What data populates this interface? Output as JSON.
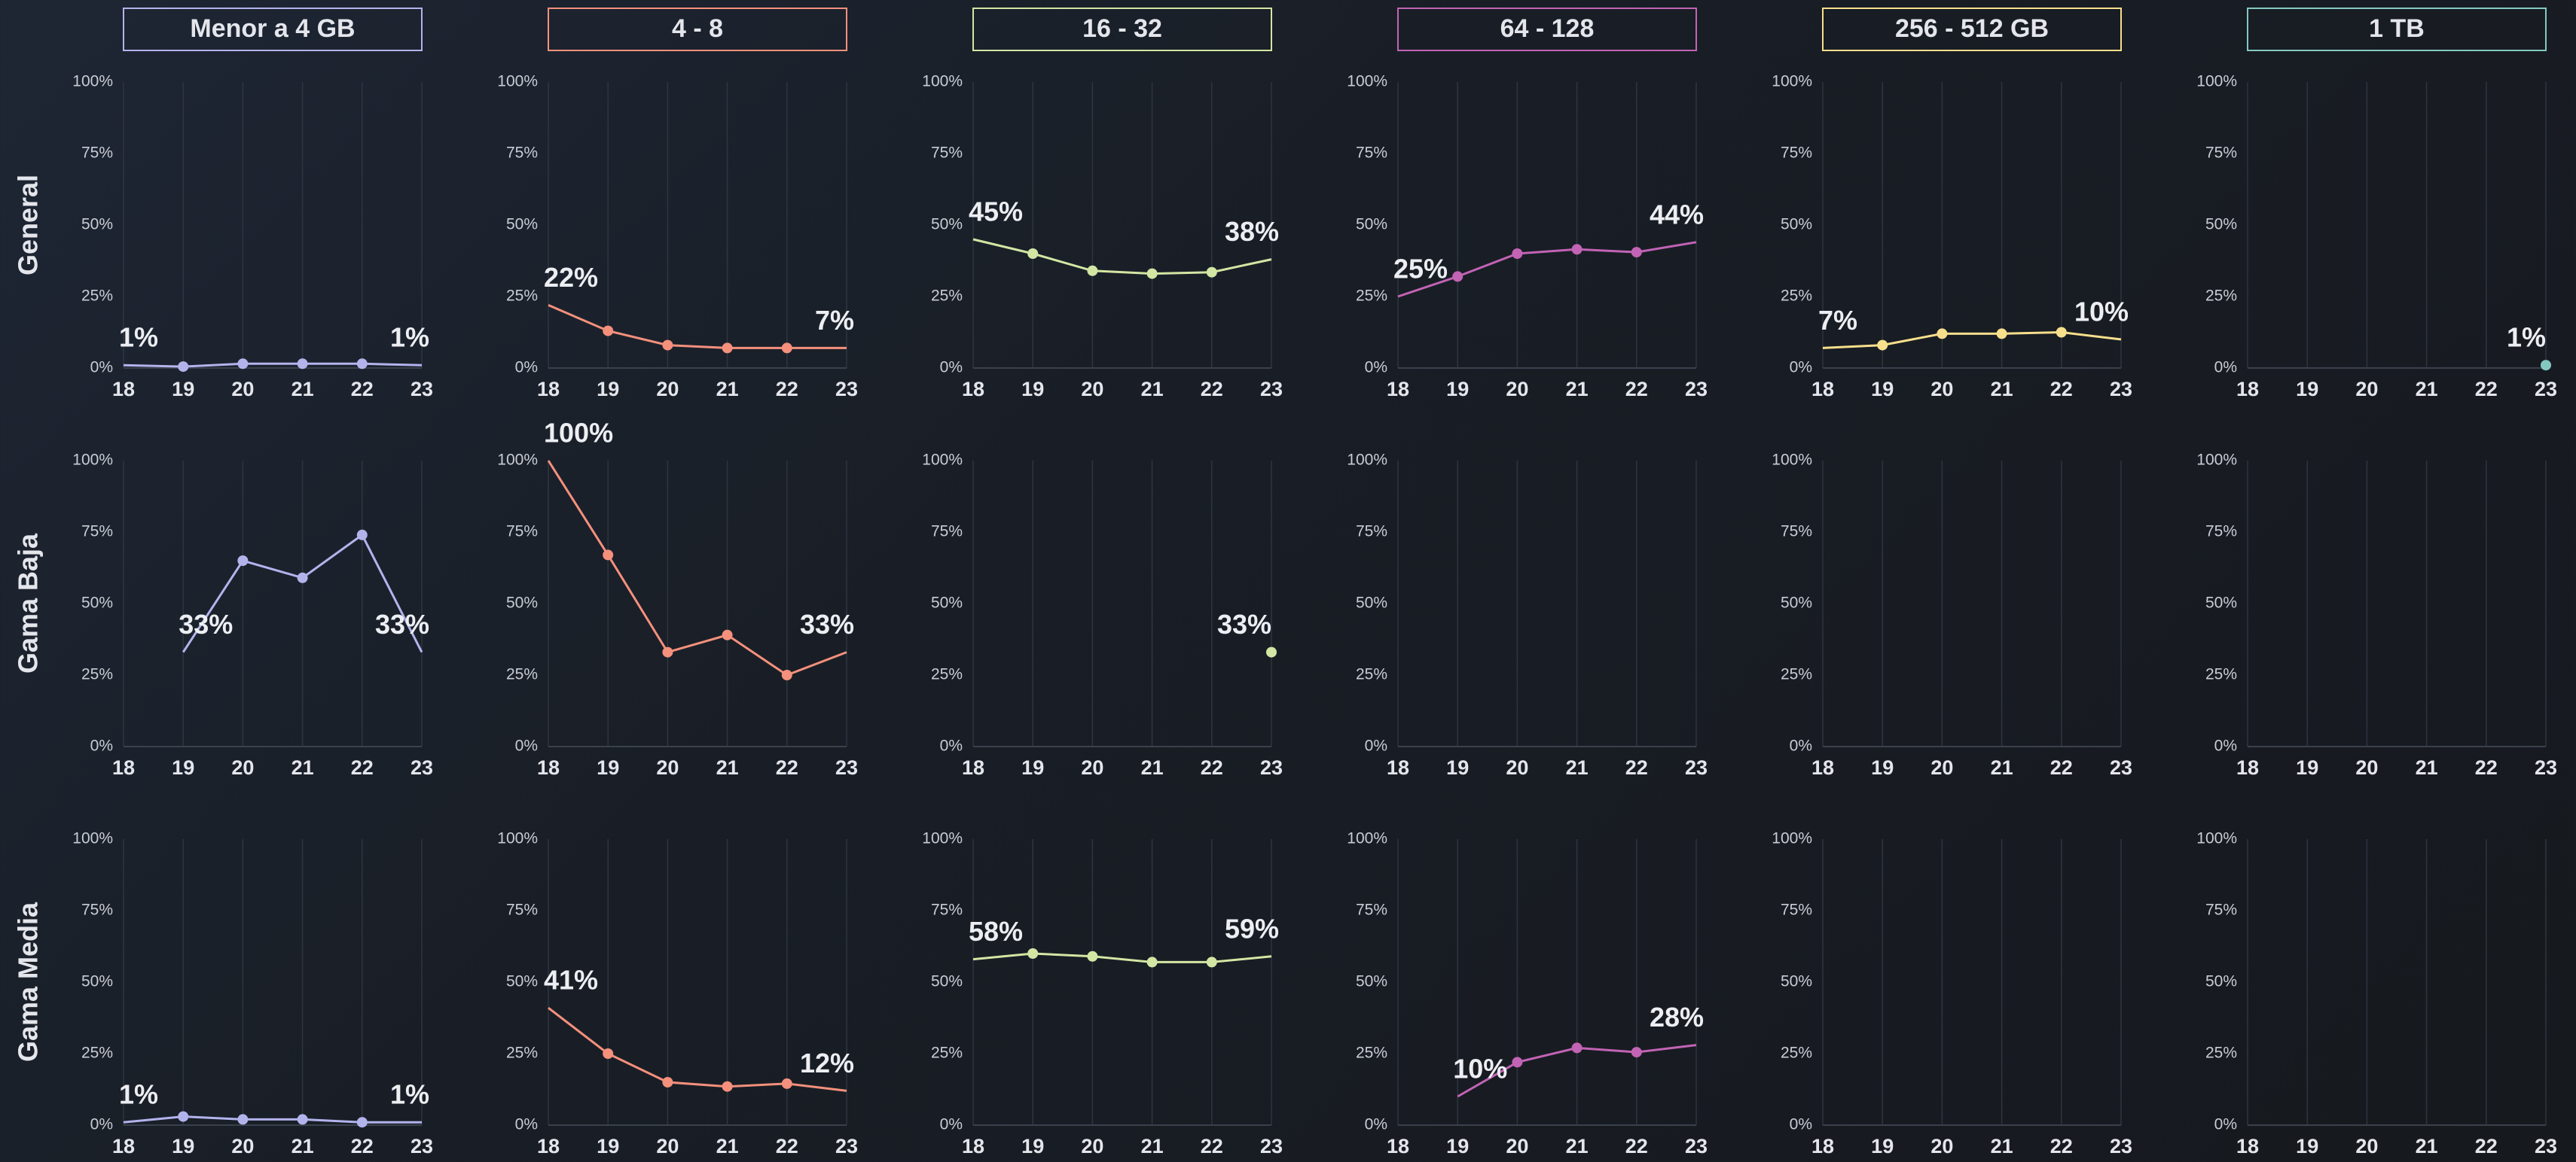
{
  "columns": [
    "Menor a 4 GB",
    "4 - 8",
    "16 - 32",
    "64 - 128",
    "256 - 512 GB",
    "1 TB"
  ],
  "rows": [
    "General",
    "Gama Baja",
    "Gama Media"
  ],
  "chart_data": [
    {
      "type": "line",
      "categories": [
        "18",
        "19",
        "20",
        "21",
        "22",
        "23"
      ],
      "ylim": [
        0,
        100
      ],
      "yticks": [
        {
          "value": 0,
          "label": "0%"
        },
        {
          "value": 25,
          "label": "25%"
        },
        {
          "value": 50,
          "label": "50%"
        },
        {
          "value": 75,
          "label": "75%"
        },
        {
          "value": 100,
          "label": "100%"
        }
      ],
      "series": [
        {
          "color": "#b3b3ec",
          "values": [
            1,
            0.5,
            1.5,
            1.5,
            1.5,
            1
          ],
          "value_labels": [
            "1%",
            null,
            null,
            null,
            null,
            "1%"
          ]
        }
      ]
    },
    {
      "type": "line",
      "categories": [
        "18",
        "19",
        "20",
        "21",
        "22",
        "23"
      ],
      "ylim": [
        0,
        100
      ],
      "yticks": [
        {
          "value": 0,
          "label": "0%"
        },
        {
          "value": 25,
          "label": "25%"
        },
        {
          "value": 50,
          "label": "50%"
        },
        {
          "value": 75,
          "label": "75%"
        },
        {
          "value": 100,
          "label": "100%"
        }
      ],
      "series": [
        {
          "color": "#f4907c",
          "values": [
            22,
            13,
            8,
            7,
            7,
            7
          ],
          "value_labels": [
            "22%",
            null,
            null,
            null,
            null,
            "7%"
          ]
        }
      ]
    },
    {
      "type": "line",
      "categories": [
        "18",
        "19",
        "20",
        "21",
        "22",
        "23"
      ],
      "ylim": [
        0,
        100
      ],
      "yticks": [
        {
          "value": 0,
          "label": "0%"
        },
        {
          "value": 25,
          "label": "25%"
        },
        {
          "value": 50,
          "label": "50%"
        },
        {
          "value": 75,
          "label": "75%"
        },
        {
          "value": 100,
          "label": "100%"
        }
      ],
      "series": [
        {
          "color": "#d3e6a3",
          "values": [
            45,
            40,
            34,
            33,
            33.5,
            38
          ],
          "value_labels": [
            "45%",
            null,
            null,
            null,
            null,
            "38%"
          ]
        }
      ]
    },
    {
      "type": "line",
      "categories": [
        "18",
        "19",
        "20",
        "21",
        "22",
        "23"
      ],
      "ylim": [
        0,
        100
      ],
      "yticks": [
        {
          "value": 0,
          "label": "0%"
        },
        {
          "value": 25,
          "label": "25%"
        },
        {
          "value": 50,
          "label": "50%"
        },
        {
          "value": 75,
          "label": "75%"
        },
        {
          "value": 100,
          "label": "100%"
        }
      ],
      "series": [
        {
          "color": "#c263b5",
          "values": [
            25,
            32,
            40,
            41.5,
            40.5,
            44
          ],
          "value_labels": [
            "25%",
            null,
            null,
            null,
            null,
            "44%"
          ]
        }
      ]
    },
    {
      "type": "line",
      "categories": [
        "18",
        "19",
        "20",
        "21",
        "22",
        "23"
      ],
      "ylim": [
        0,
        100
      ],
      "yticks": [
        {
          "value": 0,
          "label": "0%"
        },
        {
          "value": 25,
          "label": "25%"
        },
        {
          "value": 50,
          "label": "50%"
        },
        {
          "value": 75,
          "label": "75%"
        },
        {
          "value": 100,
          "label": "100%"
        }
      ],
      "series": [
        {
          "color": "#f7df8c",
          "values": [
            7,
            8,
            12,
            12,
            12.5,
            10
          ],
          "value_labels": [
            "7%",
            null,
            null,
            null,
            null,
            "10%"
          ]
        }
      ]
    },
    {
      "type": "line",
      "categories": [
        "18",
        "19",
        "20",
        "21",
        "22",
        "23"
      ],
      "ylim": [
        0,
        100
      ],
      "yticks": [
        {
          "value": 0,
          "label": "0%"
        },
        {
          "value": 25,
          "label": "25%"
        },
        {
          "value": 50,
          "label": "50%"
        },
        {
          "value": 75,
          "label": "75%"
        },
        {
          "value": 100,
          "label": "100%"
        }
      ],
      "series": [
        {
          "color": "#84c9c1",
          "values": [
            null,
            null,
            null,
            null,
            null,
            1
          ],
          "value_labels": [
            null,
            null,
            null,
            null,
            null,
            "1%"
          ]
        }
      ]
    },
    {
      "type": "line",
      "categories": [
        "18",
        "19",
        "20",
        "21",
        "22",
        "23"
      ],
      "ylim": [
        0,
        100
      ],
      "yticks": [
        {
          "value": 0,
          "label": "0%"
        },
        {
          "value": 25,
          "label": "25%"
        },
        {
          "value": 50,
          "label": "50%"
        },
        {
          "value": 75,
          "label": "75%"
        },
        {
          "value": 100,
          "label": "100%"
        }
      ],
      "series": [
        {
          "color": "#b3b3ec",
          "values": [
            null,
            33,
            65,
            59,
            74,
            33
          ],
          "value_labels": [
            null,
            "33%",
            null,
            null,
            null,
            "33%"
          ]
        }
      ]
    },
    {
      "type": "line",
      "categories": [
        "18",
        "19",
        "20",
        "21",
        "22",
        "23"
      ],
      "ylim": [
        0,
        100
      ],
      "yticks": [
        {
          "value": 0,
          "label": "0%"
        },
        {
          "value": 25,
          "label": "25%"
        },
        {
          "value": 50,
          "label": "50%"
        },
        {
          "value": 75,
          "label": "75%"
        },
        {
          "value": 100,
          "label": "100%"
        }
      ],
      "series": [
        {
          "color": "#f4907c",
          "values": [
            100,
            67,
            33,
            39,
            25,
            33
          ],
          "value_labels": [
            "100%",
            null,
            null,
            null,
            null,
            "33%"
          ]
        }
      ]
    },
    {
      "type": "line",
      "categories": [
        "18",
        "19",
        "20",
        "21",
        "22",
        "23"
      ],
      "ylim": [
        0,
        100
      ],
      "yticks": [
        {
          "value": 0,
          "label": "0%"
        },
        {
          "value": 25,
          "label": "25%"
        },
        {
          "value": 50,
          "label": "50%"
        },
        {
          "value": 75,
          "label": "75%"
        },
        {
          "value": 100,
          "label": "100%"
        }
      ],
      "series": [
        {
          "color": "#d3e6a3",
          "values": [
            null,
            null,
            null,
            null,
            null,
            33
          ],
          "value_labels": [
            null,
            null,
            null,
            null,
            null,
            "33%"
          ]
        }
      ]
    },
    {
      "type": "line",
      "categories": [
        "18",
        "19",
        "20",
        "21",
        "22",
        "23"
      ],
      "ylim": [
        0,
        100
      ],
      "yticks": [
        {
          "value": 0,
          "label": "0%"
        },
        {
          "value": 25,
          "label": "25%"
        },
        {
          "value": 50,
          "label": "50%"
        },
        {
          "value": 75,
          "label": "75%"
        },
        {
          "value": 100,
          "label": "100%"
        }
      ],
      "series": [
        {
          "color": "#c263b5",
          "values": [
            null,
            null,
            null,
            null,
            null,
            null
          ],
          "value_labels": [
            null,
            null,
            null,
            null,
            null,
            null
          ]
        }
      ]
    },
    {
      "type": "line",
      "categories": [
        "18",
        "19",
        "20",
        "21",
        "22",
        "23"
      ],
      "ylim": [
        0,
        100
      ],
      "yticks": [
        {
          "value": 0,
          "label": "0%"
        },
        {
          "value": 25,
          "label": "25%"
        },
        {
          "value": 50,
          "label": "50%"
        },
        {
          "value": 75,
          "label": "75%"
        },
        {
          "value": 100,
          "label": "100%"
        }
      ],
      "series": [
        {
          "color": "#f7df8c",
          "values": [
            null,
            null,
            null,
            null,
            null,
            null
          ],
          "value_labels": [
            null,
            null,
            null,
            null,
            null,
            null
          ]
        }
      ]
    },
    {
      "type": "line",
      "categories": [
        "18",
        "19",
        "20",
        "21",
        "22",
        "23"
      ],
      "ylim": [
        0,
        100
      ],
      "yticks": [
        {
          "value": 0,
          "label": "0%"
        },
        {
          "value": 25,
          "label": "25%"
        },
        {
          "value": 50,
          "label": "50%"
        },
        {
          "value": 75,
          "label": "75%"
        },
        {
          "value": 100,
          "label": "100%"
        }
      ],
      "series": [
        {
          "color": "#84c9c1",
          "values": [
            null,
            null,
            null,
            null,
            null,
            null
          ],
          "value_labels": [
            null,
            null,
            null,
            null,
            null,
            null
          ]
        }
      ]
    },
    {
      "type": "line",
      "categories": [
        "18",
        "19",
        "20",
        "21",
        "22",
        "23"
      ],
      "ylim": [
        0,
        100
      ],
      "yticks": [
        {
          "value": 0,
          "label": "0%"
        },
        {
          "value": 25,
          "label": "25%"
        },
        {
          "value": 50,
          "label": "50%"
        },
        {
          "value": 75,
          "label": "75%"
        },
        {
          "value": 100,
          "label": "100%"
        }
      ],
      "series": [
        {
          "color": "#b3b3ec",
          "values": [
            1,
            3,
            2,
            2,
            1,
            1
          ],
          "value_labels": [
            "1%",
            null,
            null,
            null,
            null,
            "1%"
          ]
        }
      ]
    },
    {
      "type": "line",
      "categories": [
        "18",
        "19",
        "20",
        "21",
        "22",
        "23"
      ],
      "ylim": [
        0,
        100
      ],
      "yticks": [
        {
          "value": 0,
          "label": "0%"
        },
        {
          "value": 25,
          "label": "25%"
        },
        {
          "value": 50,
          "label": "50%"
        },
        {
          "value": 75,
          "label": "75%"
        },
        {
          "value": 100,
          "label": "100%"
        }
      ],
      "series": [
        {
          "color": "#f4907c",
          "values": [
            41,
            25,
            15,
            13.5,
            14.5,
            12
          ],
          "value_labels": [
            "41%",
            null,
            null,
            null,
            null,
            "12%"
          ]
        }
      ]
    },
    {
      "type": "line",
      "categories": [
        "18",
        "19",
        "20",
        "21",
        "22",
        "23"
      ],
      "ylim": [
        0,
        100
      ],
      "yticks": [
        {
          "value": 0,
          "label": "0%"
        },
        {
          "value": 25,
          "label": "25%"
        },
        {
          "value": 50,
          "label": "50%"
        },
        {
          "value": 75,
          "label": "75%"
        },
        {
          "value": 100,
          "label": "100%"
        }
      ],
      "series": [
        {
          "color": "#d3e6a3",
          "values": [
            58,
            60,
            59,
            57,
            57,
            59
          ],
          "value_labels": [
            "58%",
            null,
            null,
            null,
            null,
            "59%"
          ]
        }
      ]
    },
    {
      "type": "line",
      "categories": [
        "18",
        "19",
        "20",
        "21",
        "22",
        "23"
      ],
      "ylim": [
        0,
        100
      ],
      "yticks": [
        {
          "value": 0,
          "label": "0%"
        },
        {
          "value": 25,
          "label": "25%"
        },
        {
          "value": 50,
          "label": "50%"
        },
        {
          "value": 75,
          "label": "75%"
        },
        {
          "value": 100,
          "label": "100%"
        }
      ],
      "series": [
        {
          "color": "#c263b5",
          "values": [
            null,
            10,
            22,
            27,
            25.5,
            28
          ],
          "value_labels": [
            null,
            "10%",
            null,
            null,
            null,
            "28%"
          ]
        }
      ]
    },
    {
      "type": "line",
      "categories": [
        "18",
        "19",
        "20",
        "21",
        "22",
        "23"
      ],
      "ylim": [
        0,
        100
      ],
      "yticks": [
        {
          "value": 0,
          "label": "0%"
        },
        {
          "value": 25,
          "label": "25%"
        },
        {
          "value": 50,
          "label": "50%"
        },
        {
          "value": 75,
          "label": "75%"
        },
        {
          "value": 100,
          "label": "100%"
        }
      ],
      "series": [
        {
          "color": "#f7df8c",
          "values": [
            null,
            null,
            null,
            null,
            null,
            null
          ],
          "value_labels": [
            null,
            null,
            null,
            null,
            null,
            null
          ]
        }
      ]
    },
    {
      "type": "line",
      "categories": [
        "18",
        "19",
        "20",
        "21",
        "22",
        "23"
      ],
      "ylim": [
        0,
        100
      ],
      "yticks": [
        {
          "value": 0,
          "label": "0%"
        },
        {
          "value": 25,
          "label": "25%"
        },
        {
          "value": 50,
          "label": "50%"
        },
        {
          "value": 75,
          "label": "75%"
        },
        {
          "value": 100,
          "label": "100%"
        }
      ],
      "series": [
        {
          "color": "#84c9c1",
          "values": [
            null,
            null,
            null,
            null,
            null,
            null
          ],
          "value_labels": [
            null,
            null,
            null,
            null,
            null,
            null
          ]
        }
      ]
    }
  ]
}
